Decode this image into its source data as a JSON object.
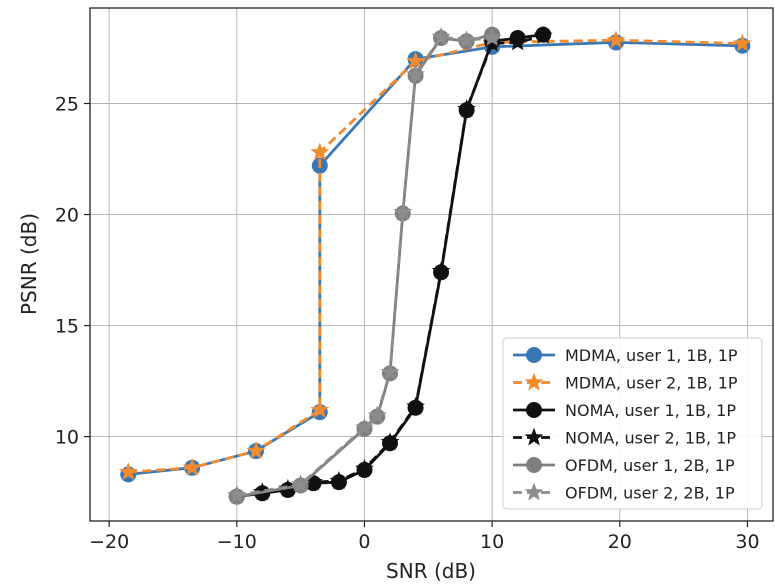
{
  "chart_data": {
    "type": "line",
    "title": "",
    "xlabel": "SNR (dB)",
    "ylabel": "PSNR (dB)",
    "xlim": [
      -21.5,
      32
    ],
    "ylim": [
      6.2,
      29.3
    ],
    "xticks": [
      -20,
      -10,
      0,
      10,
      20,
      30
    ],
    "xtick_labels": [
      "−20",
      "−10",
      "0",
      "10",
      "20",
      "30"
    ],
    "yticks": [
      10,
      15,
      20,
      25
    ],
    "ytick_labels": [
      "10",
      "15",
      "20",
      "25"
    ],
    "grid": true,
    "legend_position": "lower-right",
    "series": [
      {
        "name": "MDMA, user 1, 1B, 1P",
        "color": "#3a78b5",
        "line": "solid",
        "marker": "circle",
        "x": [
          -18.5,
          -13.5,
          -8.5,
          -3.5,
          -3.5,
          4,
          10,
          19.7,
          29.6
        ],
        "y": [
          8.3,
          8.6,
          9.35,
          11.1,
          22.2,
          27.0,
          27.55,
          27.75,
          27.6
        ]
      },
      {
        "name": "MDMA, user 2, 1B, 1P",
        "color": "#f28a2e",
        "line": "dashed",
        "marker": "star",
        "x": [
          -18.5,
          -13.5,
          -8.5,
          -3.5,
          -3.5,
          4,
          10,
          19.7,
          29.6
        ],
        "y": [
          8.4,
          8.6,
          9.35,
          11.2,
          22.8,
          26.9,
          27.75,
          27.85,
          27.7
        ]
      },
      {
        "name": "NOMA, user 1, 1B, 1P",
        "color": "#111111",
        "line": "solid",
        "marker": "circle",
        "x": [
          -10,
          -8,
          -6,
          -4,
          -2,
          0,
          2,
          4,
          6,
          8,
          10,
          12,
          14
        ],
        "y": [
          7.3,
          7.45,
          7.6,
          7.9,
          7.95,
          8.5,
          9.7,
          11.3,
          17.4,
          24.7,
          27.8,
          27.95,
          28.1
        ]
      },
      {
        "name": "NOMA, user 2, 1B, 1P",
        "color": "#111111",
        "line": "dashed",
        "marker": "star",
        "x": [
          -10,
          -8,
          -6,
          -4,
          -2,
          0,
          2,
          4,
          6,
          8,
          10,
          12,
          14
        ],
        "y": [
          7.35,
          7.5,
          7.65,
          7.95,
          8.0,
          8.55,
          9.75,
          11.35,
          17.45,
          24.75,
          27.7,
          27.75,
          28.05
        ]
      },
      {
        "name": "OFDM, user 1, 2B, 1P",
        "color": "#7f7f7f",
        "line": "solid",
        "marker": "circle",
        "x": [
          -10,
          -5,
          0,
          1,
          2,
          3,
          4,
          6,
          8,
          10
        ],
        "y": [
          7.3,
          7.8,
          10.35,
          10.9,
          12.85,
          20.05,
          26.25,
          27.95,
          27.8,
          28.1
        ]
      },
      {
        "name": "OFDM, user 2, 2B, 1P",
        "color": "#8c8c8c",
        "line": "dashed",
        "marker": "star",
        "x": [
          -10,
          -5,
          0,
          1,
          2,
          3,
          4,
          6,
          8,
          10
        ],
        "y": [
          7.35,
          7.85,
          10.4,
          10.95,
          12.9,
          20.1,
          26.3,
          28.0,
          27.85,
          27.95
        ]
      }
    ]
  }
}
